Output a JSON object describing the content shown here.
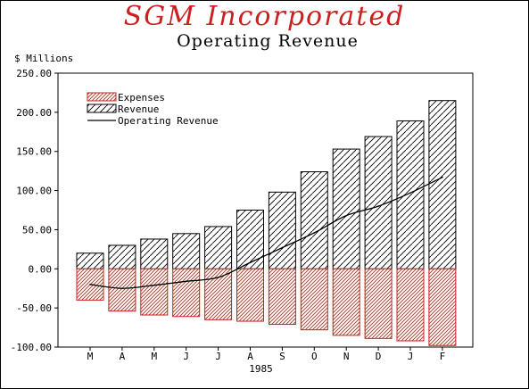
{
  "chart_data": {
    "type": "bar",
    "title": "SGM Incorporated",
    "subtitle": "Operating Revenue",
    "ylabel": "$ Millions",
    "xlabel": "1985",
    "ylim": [
      -100,
      250
    ],
    "yticks": [
      "250.00",
      "200.00",
      "150.00",
      "100.00",
      "50.00",
      "0.00",
      "-50.00",
      "-100.00"
    ],
    "ytick_values": [
      250,
      200,
      150,
      100,
      50,
      0,
      -50,
      -100
    ],
    "categories": [
      "M",
      "A",
      "M",
      "J",
      "J",
      "A",
      "S",
      "O",
      "N",
      "D",
      "J",
      "F"
    ],
    "series": [
      {
        "name": "Expenses",
        "kind": "bar",
        "values": [
          -40,
          -54,
          -59,
          -61,
          -65,
          -67,
          -71,
          -78,
          -85,
          -89,
          -92,
          -98
        ]
      },
      {
        "name": "Revenue",
        "kind": "bar",
        "values": [
          20,
          30,
          38,
          45,
          54,
          75,
          98,
          124,
          153,
          169,
          189,
          215
        ]
      },
      {
        "name": "Operating Revenue",
        "kind": "line",
        "values": [
          -20,
          -25,
          -21,
          -16,
          -11,
          8,
          27,
          46,
          68,
          80,
          97,
          117
        ]
      }
    ],
    "legend_position": "top-left",
    "colors": {
      "expenses": "#cc1f1f",
      "revenue": "#000000",
      "line": "#000000",
      "title": "#cc1f1f"
    }
  }
}
